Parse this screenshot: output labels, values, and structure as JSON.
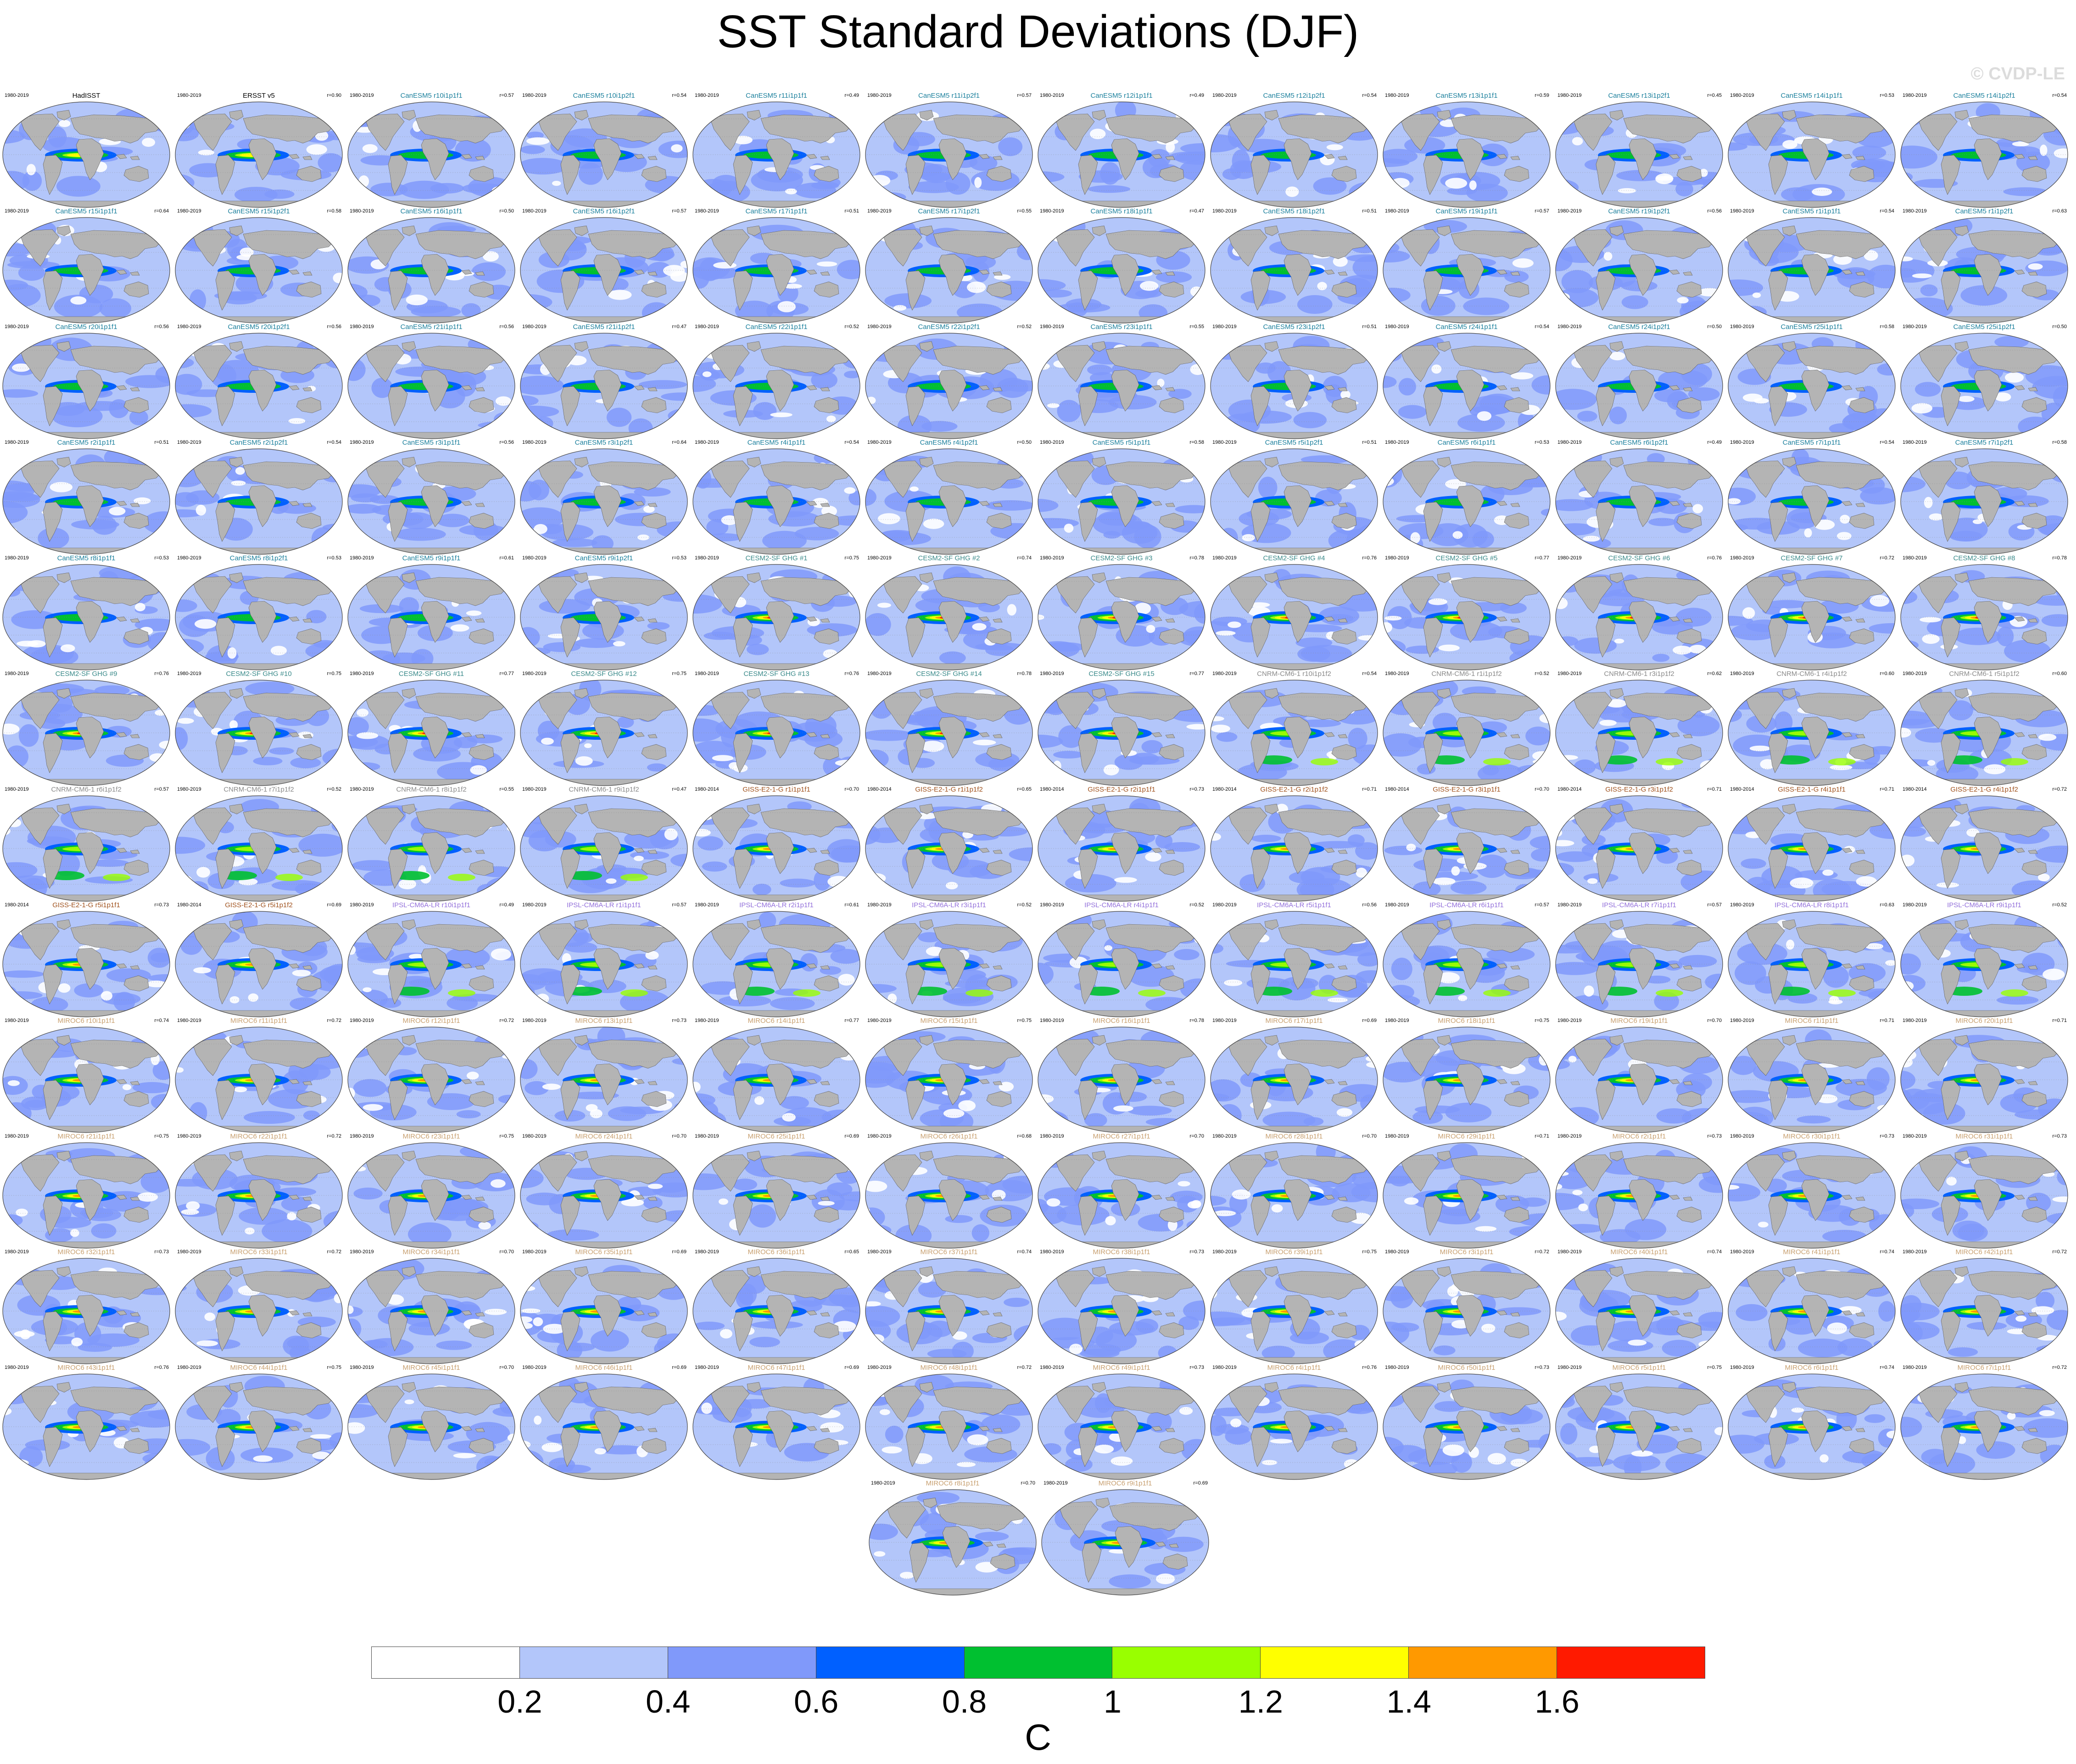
{
  "title": "SST Standard Deviations (DJF)",
  "watermark": "© CVDP-LE",
  "colorbar": {
    "unit": "C",
    "tick_labels": [
      "0.2",
      "0.4",
      "0.6",
      "0.8",
      "1",
      "1.2",
      "1.4",
      "1.6"
    ],
    "colors": [
      "#ffffff",
      "#b3c6fa",
      "#8099fa",
      "#0060ff",
      "#00c030",
      "#99ff00",
      "#ffff00",
      "#ff9900",
      "#ff1a00"
    ]
  },
  "colors": {
    "land": "#b4b4b4",
    "ocean_bg": "#b3c6fa",
    "obs_title": "#000000",
    "canesm5_title": "#1a7f9c",
    "cesm2_title": "#3a8a8a",
    "cnrm_title": "#8a8a8a",
    "giss_title": "#a0521e",
    "ipsl_title": "#9370db",
    "miroc_title": "#c8a070"
  },
  "panels": [
    {
      "period": "1980-2019",
      "name": "HadISST",
      "r": "",
      "group": "obs"
    },
    {
      "period": "1980-2019",
      "name": "ERSST v5",
      "r": "r=0.90",
      "group": "obs"
    },
    {
      "period": "1980-2019",
      "name": "CanESM5 r10i1p1f1",
      "r": "r=0.57",
      "group": "canesm5"
    },
    {
      "period": "1980-2019",
      "name": "CanESM5 r10i1p2f1",
      "r": "r=0.54",
      "group": "canesm5"
    },
    {
      "period": "1980-2019",
      "name": "CanESM5 r11i1p1f1",
      "r": "r=0.49",
      "group": "canesm5"
    },
    {
      "period": "1980-2019",
      "name": "CanESM5 r11i1p2f1",
      "r": "r=0.57",
      "group": "canesm5"
    },
    {
      "period": "1980-2019",
      "name": "CanESM5 r12i1p1f1",
      "r": "r=0.49",
      "group": "canesm5"
    },
    {
      "period": "1980-2019",
      "name": "CanESM5 r12i1p2f1",
      "r": "r=0.54",
      "group": "canesm5"
    },
    {
      "period": "1980-2019",
      "name": "CanESM5 r13i1p1f1",
      "r": "r=0.59",
      "group": "canesm5"
    },
    {
      "period": "1980-2019",
      "name": "CanESM5 r13i1p2f1",
      "r": "r=0.45",
      "group": "canesm5"
    },
    {
      "period": "1980-2019",
      "name": "CanESM5 r14i1p1f1",
      "r": "r=0.53",
      "group": "canesm5"
    },
    {
      "period": "1980-2019",
      "name": "CanESM5 r14i1p2f1",
      "r": "r=0.54",
      "group": "canesm5"
    },
    {
      "period": "1980-2019",
      "name": "CanESM5 r15i1p1f1",
      "r": "r=0.64",
      "group": "canesm5"
    },
    {
      "period": "1980-2019",
      "name": "CanESM5 r15i1p2f1",
      "r": "r=0.58",
      "group": "canesm5"
    },
    {
      "period": "1980-2019",
      "name": "CanESM5 r16i1p1f1",
      "r": "r=0.50",
      "group": "canesm5"
    },
    {
      "period": "1980-2019",
      "name": "CanESM5 r16i1p2f1",
      "r": "r=0.57",
      "group": "canesm5"
    },
    {
      "period": "1980-2019",
      "name": "CanESM5 r17i1p1f1",
      "r": "r=0.51",
      "group": "canesm5"
    },
    {
      "period": "1980-2019",
      "name": "CanESM5 r17i1p2f1",
      "r": "r=0.55",
      "group": "canesm5"
    },
    {
      "period": "1980-2019",
      "name": "CanESM5 r18i1p1f1",
      "r": "r=0.47",
      "group": "canesm5"
    },
    {
      "period": "1980-2019",
      "name": "CanESM5 r18i1p2f1",
      "r": "r=0.51",
      "group": "canesm5"
    },
    {
      "period": "1980-2019",
      "name": "CanESM5 r19i1p1f1",
      "r": "r=0.57",
      "group": "canesm5"
    },
    {
      "period": "1980-2019",
      "name": "CanESM5 r19i1p2f1",
      "r": "r=0.56",
      "group": "canesm5"
    },
    {
      "period": "1980-2019",
      "name": "CanESM5 r1i1p1f1",
      "r": "r=0.54",
      "group": "canesm5"
    },
    {
      "period": "1980-2019",
      "name": "CanESM5 r1i1p2f1",
      "r": "r=0.63",
      "group": "canesm5"
    },
    {
      "period": "1980-2019",
      "name": "CanESM5 r20i1p1f1",
      "r": "r=0.56",
      "group": "canesm5"
    },
    {
      "period": "1980-2019",
      "name": "CanESM5 r20i1p2f1",
      "r": "r=0.56",
      "group": "canesm5"
    },
    {
      "period": "1980-2019",
      "name": "CanESM5 r21i1p1f1",
      "r": "r=0.56",
      "group": "canesm5"
    },
    {
      "period": "1980-2019",
      "name": "CanESM5 r21i1p2f1",
      "r": "r=0.47",
      "group": "canesm5"
    },
    {
      "period": "1980-2019",
      "name": "CanESM5 r22i1p1f1",
      "r": "r=0.52",
      "group": "canesm5"
    },
    {
      "period": "1980-2019",
      "name": "CanESM5 r22i1p2f1",
      "r": "r=0.52",
      "group": "canesm5"
    },
    {
      "period": "1980-2019",
      "name": "CanESM5 r23i1p1f1",
      "r": "r=0.55",
      "group": "canesm5"
    },
    {
      "period": "1980-2019",
      "name": "CanESM5 r23i1p2f1",
      "r": "r=0.51",
      "group": "canesm5"
    },
    {
      "period": "1980-2019",
      "name": "CanESM5 r24i1p1f1",
      "r": "r=0.54",
      "group": "canesm5"
    },
    {
      "period": "1980-2019",
      "name": "CanESM5 r24i1p2f1",
      "r": "r=0.50",
      "group": "canesm5"
    },
    {
      "period": "1980-2019",
      "name": "CanESM5 r25i1p1f1",
      "r": "r=0.58",
      "group": "canesm5"
    },
    {
      "period": "1980-2019",
      "name": "CanESM5 r25i1p2f1",
      "r": "r=0.50",
      "group": "canesm5"
    },
    {
      "period": "1980-2019",
      "name": "CanESM5 r2i1p1f1",
      "r": "r=0.51",
      "group": "canesm5"
    },
    {
      "period": "1980-2019",
      "name": "CanESM5 r2i1p2f1",
      "r": "r=0.54",
      "group": "canesm5"
    },
    {
      "period": "1980-2019",
      "name": "CanESM5 r3i1p1f1",
      "r": "r=0.56",
      "group": "canesm5"
    },
    {
      "period": "1980-2019",
      "name": "CanESM5 r3i1p2f1",
      "r": "r=0.64",
      "group": "canesm5"
    },
    {
      "period": "1980-2019",
      "name": "CanESM5 r4i1p1f1",
      "r": "r=0.54",
      "group": "canesm5"
    },
    {
      "period": "1980-2019",
      "name": "CanESM5 r4i1p2f1",
      "r": "r=0.50",
      "group": "canesm5"
    },
    {
      "period": "1980-2019",
      "name": "CanESM5 r5i1p1f1",
      "r": "r=0.58",
      "group": "canesm5"
    },
    {
      "period": "1980-2019",
      "name": "CanESM5 r5i1p2f1",
      "r": "r=0.51",
      "group": "canesm5"
    },
    {
      "period": "1980-2019",
      "name": "CanESM5 r6i1p1f1",
      "r": "r=0.53",
      "group": "canesm5"
    },
    {
      "period": "1980-2019",
      "name": "CanESM5 r6i1p2f1",
      "r": "r=0.49",
      "group": "canesm5"
    },
    {
      "period": "1980-2019",
      "name": "CanESM5 r7i1p1f1",
      "r": "r=0.54",
      "group": "canesm5"
    },
    {
      "period": "1980-2019",
      "name": "CanESM5 r7i1p2f1",
      "r": "r=0.58",
      "group": "canesm5"
    },
    {
      "period": "1980-2019",
      "name": "CanESM5 r8i1p1f1",
      "r": "r=0.53",
      "group": "canesm5"
    },
    {
      "period": "1980-2019",
      "name": "CanESM5 r8i1p2f1",
      "r": "r=0.53",
      "group": "canesm5"
    },
    {
      "period": "1980-2019",
      "name": "CanESM5 r9i1p1f1",
      "r": "r=0.61",
      "group": "canesm5"
    },
    {
      "period": "1980-2019",
      "name": "CanESM5 r9i1p2f1",
      "r": "r=0.53",
      "group": "canesm5"
    },
    {
      "period": "1980-2019",
      "name": "CESM2-SF GHG #1",
      "r": "r=0.75",
      "group": "cesm2"
    },
    {
      "period": "1980-2019",
      "name": "CESM2-SF GHG #2",
      "r": "r=0.74",
      "group": "cesm2"
    },
    {
      "period": "1980-2019",
      "name": "CESM2-SF GHG #3",
      "r": "r=0.78",
      "group": "cesm2"
    },
    {
      "period": "1980-2019",
      "name": "CESM2-SF GHG #4",
      "r": "r=0.76",
      "group": "cesm2"
    },
    {
      "period": "1980-2019",
      "name": "CESM2-SF GHG #5",
      "r": "r=0.77",
      "group": "cesm2"
    },
    {
      "period": "1980-2019",
      "name": "CESM2-SF GHG #6",
      "r": "r=0.76",
      "group": "cesm2"
    },
    {
      "period": "1980-2019",
      "name": "CESM2-SF GHG #7",
      "r": "r=0.72",
      "group": "cesm2"
    },
    {
      "period": "1980-2019",
      "name": "CESM2-SF GHG #8",
      "r": "r=0.78",
      "group": "cesm2"
    },
    {
      "period": "1980-2019",
      "name": "CESM2-SF GHG #9",
      "r": "r=0.76",
      "group": "cesm2"
    },
    {
      "period": "1980-2019",
      "name": "CESM2-SF GHG #10",
      "r": "r=0.75",
      "group": "cesm2"
    },
    {
      "period": "1980-2019",
      "name": "CESM2-SF GHG #11",
      "r": "r=0.77",
      "group": "cesm2"
    },
    {
      "period": "1980-2019",
      "name": "CESM2-SF GHG #12",
      "r": "r=0.75",
      "group": "cesm2"
    },
    {
      "period": "1980-2019",
      "name": "CESM2-SF GHG #13",
      "r": "r=0.76",
      "group": "cesm2"
    },
    {
      "period": "1980-2019",
      "name": "CESM2-SF GHG #14",
      "r": "r=0.78",
      "group": "cesm2"
    },
    {
      "period": "1980-2019",
      "name": "CESM2-SF GHG #15",
      "r": "r=0.77",
      "group": "cesm2"
    },
    {
      "period": "1980-2019",
      "name": "CNRM-CM6-1 r10i1p1f2",
      "r": "r=0.54",
      "group": "cnrm"
    },
    {
      "period": "1980-2019",
      "name": "CNRM-CM6-1 r1i1p1f2",
      "r": "r=0.52",
      "group": "cnrm"
    },
    {
      "period": "1980-2019",
      "name": "CNRM-CM6-1 r3i1p1f2",
      "r": "r=0.62",
      "group": "cnrm"
    },
    {
      "period": "1980-2019",
      "name": "CNRM-CM6-1 r4i1p1f2",
      "r": "r=0.60",
      "group": "cnrm"
    },
    {
      "period": "1980-2019",
      "name": "CNRM-CM6-1 r5i1p1f2",
      "r": "r=0.60",
      "group": "cnrm"
    },
    {
      "period": "1980-2019",
      "name": "CNRM-CM6-1 r6i1p1f2",
      "r": "r=0.57",
      "group": "cnrm"
    },
    {
      "period": "1980-2019",
      "name": "CNRM-CM6-1 r7i1p1f2",
      "r": "r=0.52",
      "group": "cnrm"
    },
    {
      "period": "1980-2019",
      "name": "CNRM-CM6-1 r8i1p1f2",
      "r": "r=0.55",
      "group": "cnrm"
    },
    {
      "period": "1980-2019",
      "name": "CNRM-CM6-1 r9i1p1f2",
      "r": "r=0.47",
      "group": "cnrm"
    },
    {
      "period": "1980-2014",
      "name": "GISS-E2-1-G r1i1p1f1",
      "r": "r=0.70",
      "group": "giss"
    },
    {
      "period": "1980-2014",
      "name": "GISS-E2-1-G r1i1p1f2",
      "r": "r=0.65",
      "group": "giss"
    },
    {
      "period": "1980-2014",
      "name": "GISS-E2-1-G r2i1p1f1",
      "r": "r=0.73",
      "group": "giss"
    },
    {
      "period": "1980-2014",
      "name": "GISS-E2-1-G r2i1p1f2",
      "r": "r=0.71",
      "group": "giss"
    },
    {
      "period": "1980-2014",
      "name": "GISS-E2-1-G r3i1p1f1",
      "r": "r=0.70",
      "group": "giss"
    },
    {
      "period": "1980-2014",
      "name": "GISS-E2-1-G r3i1p1f2",
      "r": "r=0.71",
      "group": "giss"
    },
    {
      "period": "1980-2014",
      "name": "GISS-E2-1-G r4i1p1f1",
      "r": "r=0.71",
      "group": "giss"
    },
    {
      "period": "1980-2014",
      "name": "GISS-E2-1-G r4i1p1f2",
      "r": "r=0.72",
      "group": "giss"
    },
    {
      "period": "1980-2014",
      "name": "GISS-E2-1-G r5i1p1f1",
      "r": "r=0.73",
      "group": "giss"
    },
    {
      "period": "1980-2014",
      "name": "GISS-E2-1-G r5i1p1f2",
      "r": "r=0.69",
      "group": "giss"
    },
    {
      "period": "1980-2019",
      "name": "IPSL-CM6A-LR r10i1p1f1",
      "r": "r=0.49",
      "group": "ipsl"
    },
    {
      "period": "1980-2019",
      "name": "IPSL-CM6A-LR r1i1p1f1",
      "r": "r=0.57",
      "group": "ipsl"
    },
    {
      "period": "1980-2019",
      "name": "IPSL-CM6A-LR r2i1p1f1",
      "r": "r=0.61",
      "group": "ipsl"
    },
    {
      "period": "1980-2019",
      "name": "IPSL-CM6A-LR r3i1p1f1",
      "r": "r=0.52",
      "group": "ipsl"
    },
    {
      "period": "1980-2019",
      "name": "IPSL-CM6A-LR r4i1p1f1",
      "r": "r=0.52",
      "group": "ipsl"
    },
    {
      "period": "1980-2019",
      "name": "IPSL-CM6A-LR r5i1p1f1",
      "r": "r=0.56",
      "group": "ipsl"
    },
    {
      "period": "1980-2019",
      "name": "IPSL-CM6A-LR r6i1p1f1",
      "r": "r=0.57",
      "group": "ipsl"
    },
    {
      "period": "1980-2019",
      "name": "IPSL-CM6A-LR r7i1p1f1",
      "r": "r=0.57",
      "group": "ipsl"
    },
    {
      "period": "1980-2019",
      "name": "IPSL-CM6A-LR r8i1p1f1",
      "r": "r=0.63",
      "group": "ipsl"
    },
    {
      "period": "1980-2019",
      "name": "IPSL-CM6A-LR r9i1p1f1",
      "r": "r=0.52",
      "group": "ipsl"
    },
    {
      "period": "1980-2019",
      "name": "MIROC6 r10i1p1f1",
      "r": "r=0.74",
      "group": "miroc"
    },
    {
      "period": "1980-2019",
      "name": "MIROC6 r11i1p1f1",
      "r": "r=0.72",
      "group": "miroc"
    },
    {
      "period": "1980-2019",
      "name": "MIROC6 r12i1p1f1",
      "r": "r=0.72",
      "group": "miroc"
    },
    {
      "period": "1980-2019",
      "name": "MIROC6 r13i1p1f1",
      "r": "r=0.73",
      "group": "miroc"
    },
    {
      "period": "1980-2019",
      "name": "MIROC6 r14i1p1f1",
      "r": "r=0.77",
      "group": "miroc"
    },
    {
      "period": "1980-2019",
      "name": "MIROC6 r15i1p1f1",
      "r": "r=0.75",
      "group": "miroc"
    },
    {
      "period": "1980-2019",
      "name": "MIROC6 r16i1p1f1",
      "r": "r=0.78",
      "group": "miroc"
    },
    {
      "period": "1980-2019",
      "name": "MIROC6 r17i1p1f1",
      "r": "r=0.69",
      "group": "miroc"
    },
    {
      "period": "1980-2019",
      "name": "MIROC6 r18i1p1f1",
      "r": "r=0.75",
      "group": "miroc"
    },
    {
      "period": "1980-2019",
      "name": "MIROC6 r19i1p1f1",
      "r": "r=0.70",
      "group": "miroc"
    },
    {
      "period": "1980-2019",
      "name": "MIROC6 r1i1p1f1",
      "r": "r=0.71",
      "group": "miroc"
    },
    {
      "period": "1980-2019",
      "name": "MIROC6 r20i1p1f1",
      "r": "r=0.71",
      "group": "miroc"
    },
    {
      "period": "1980-2019",
      "name": "MIROC6 r21i1p1f1",
      "r": "r=0.75",
      "group": "miroc"
    },
    {
      "period": "1980-2019",
      "name": "MIROC6 r22i1p1f1",
      "r": "r=0.72",
      "group": "miroc"
    },
    {
      "period": "1980-2019",
      "name": "MIROC6 r23i1p1f1",
      "r": "r=0.75",
      "group": "miroc"
    },
    {
      "period": "1980-2019",
      "name": "MIROC6 r24i1p1f1",
      "r": "r=0.70",
      "group": "miroc"
    },
    {
      "period": "1980-2019",
      "name": "MIROC6 r25i1p1f1",
      "r": "r=0.69",
      "group": "miroc"
    },
    {
      "period": "1980-2019",
      "name": "MIROC6 r26i1p1f1",
      "r": "r=0.68",
      "group": "miroc"
    },
    {
      "period": "1980-2019",
      "name": "MIROC6 r27i1p1f1",
      "r": "r=0.70",
      "group": "miroc"
    },
    {
      "period": "1980-2019",
      "name": "MIROC6 r28i1p1f1",
      "r": "r=0.70",
      "group": "miroc"
    },
    {
      "period": "1980-2019",
      "name": "MIROC6 r29i1p1f1",
      "r": "r=0.71",
      "group": "miroc"
    },
    {
      "period": "1980-2019",
      "name": "MIROC6 r2i1p1f1",
      "r": "r=0.73",
      "group": "miroc"
    },
    {
      "period": "1980-2019",
      "name": "MIROC6 r30i1p1f1",
      "r": "r=0.73",
      "group": "miroc"
    },
    {
      "period": "1980-2019",
      "name": "MIROC6 r31i1p1f1",
      "r": "r=0.73",
      "group": "miroc"
    },
    {
      "period": "1980-2019",
      "name": "MIROC6 r32i1p1f1",
      "r": "r=0.73",
      "group": "miroc"
    },
    {
      "period": "1980-2019",
      "name": "MIROC6 r33i1p1f1",
      "r": "r=0.72",
      "group": "miroc"
    },
    {
      "period": "1980-2019",
      "name": "MIROC6 r34i1p1f1",
      "r": "r=0.70",
      "group": "miroc"
    },
    {
      "period": "1980-2019",
      "name": "MIROC6 r35i1p1f1",
      "r": "r=0.69",
      "group": "miroc"
    },
    {
      "period": "1980-2019",
      "name": "MIROC6 r36i1p1f1",
      "r": "r=0.65",
      "group": "miroc"
    },
    {
      "period": "1980-2019",
      "name": "MIROC6 r37i1p1f1",
      "r": "r=0.74",
      "group": "miroc"
    },
    {
      "period": "1980-2019",
      "name": "MIROC6 r38i1p1f1",
      "r": "r=0.73",
      "group": "miroc"
    },
    {
      "period": "1980-2019",
      "name": "MIROC6 r39i1p1f1",
      "r": "r=0.75",
      "group": "miroc"
    },
    {
      "period": "1980-2019",
      "name": "MIROC6 r3i1p1f1",
      "r": "r=0.72",
      "group": "miroc"
    },
    {
      "period": "1980-2019",
      "name": "MIROC6 r40i1p1f1",
      "r": "r=0.74",
      "group": "miroc"
    },
    {
      "period": "1980-2019",
      "name": "MIROC6 r41i1p1f1",
      "r": "r=0.74",
      "group": "miroc"
    },
    {
      "period": "1980-2019",
      "name": "MIROC6 r42i1p1f1",
      "r": "r=0.72",
      "group": "miroc"
    },
    {
      "period": "1980-2019",
      "name": "MIROC6 r43i1p1f1",
      "r": "r=0.76",
      "group": "miroc"
    },
    {
      "period": "1980-2019",
      "name": "MIROC6 r44i1p1f1",
      "r": "r=0.75",
      "group": "miroc"
    },
    {
      "period": "1980-2019",
      "name": "MIROC6 r45i1p1f1",
      "r": "r=0.70",
      "group": "miroc"
    },
    {
      "period": "1980-2019",
      "name": "MIROC6 r46i1p1f1",
      "r": "r=0.69",
      "group": "miroc"
    },
    {
      "period": "1980-2019",
      "name": "MIROC6 r47i1p1f1",
      "r": "r=0.69",
      "group": "miroc"
    },
    {
      "period": "1980-2019",
      "name": "MIROC6 r48i1p1f1",
      "r": "r=0.72",
      "group": "miroc"
    },
    {
      "period": "1980-2019",
      "name": "MIROC6 r49i1p1f1",
      "r": "r=0.73",
      "group": "miroc"
    },
    {
      "period": "1980-2019",
      "name": "MIROC6 r4i1p1f1",
      "r": "r=0.76",
      "group": "miroc"
    },
    {
      "period": "1980-2019",
      "name": "MIROC6 r50i1p1f1",
      "r": "r=0.73",
      "group": "miroc"
    },
    {
      "period": "1980-2019",
      "name": "MIROC6 r5i1p1f1",
      "r": "r=0.75",
      "group": "miroc"
    },
    {
      "period": "1980-2019",
      "name": "MIROC6 r6i1p1f1",
      "r": "r=0.74",
      "group": "miroc"
    },
    {
      "period": "1980-2019",
      "name": "MIROC6 r7i1p1f1",
      "r": "r=0.72",
      "group": "miroc"
    },
    {
      "period": "1980-2019",
      "name": "MIROC6 r8i1p1f1",
      "r": "r=0.70",
      "group": "miroc"
    },
    {
      "period": "1980-2019",
      "name": "MIROC6 r9i1p1f1",
      "r": "r=0.69",
      "group": "miroc"
    }
  ]
}
